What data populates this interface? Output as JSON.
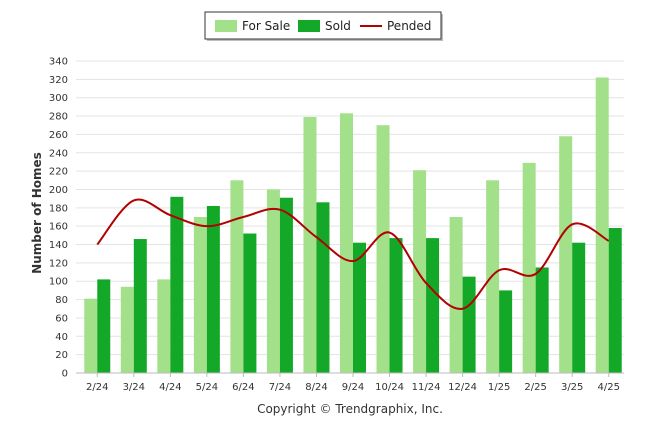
{
  "chart_data": {
    "type": "bar",
    "categories": [
      "2/24",
      "3/24",
      "4/24",
      "5/24",
      "6/24",
      "7/24",
      "8/24",
      "9/24",
      "10/24",
      "11/24",
      "12/24",
      "1/25",
      "2/25",
      "3/25",
      "4/25"
    ],
    "series": [
      {
        "name": "For Sale",
        "type": "bar",
        "color": "#a3e08a",
        "values": [
          81,
          94,
          102,
          170,
          210,
          200,
          279,
          283,
          270,
          221,
          170,
          210,
          229,
          258,
          322
        ]
      },
      {
        "name": "Sold",
        "type": "bar",
        "color": "#14a829",
        "values": [
          102,
          146,
          192,
          182,
          152,
          191,
          186,
          142,
          147,
          147,
          105,
          90,
          115,
          142,
          158
        ]
      },
      {
        "name": "Pended",
        "type": "line",
        "color": "#b30000",
        "values": [
          140,
          188,
          172,
          160,
          170,
          178,
          148,
          122,
          153,
          98,
          70,
          112,
          108,
          162,
          144
        ]
      }
    ],
    "xlabel": "",
    "ylabel": "Number of Homes",
    "ylim": [
      0,
      340
    ],
    "yticks": [
      0,
      20,
      40,
      60,
      80,
      100,
      120,
      140,
      160,
      180,
      200,
      220,
      240,
      260,
      280,
      300,
      320,
      340
    ],
    "grid": true,
    "legend": "top-center"
  },
  "credit": "Copyright © Trendgraphix, Inc."
}
